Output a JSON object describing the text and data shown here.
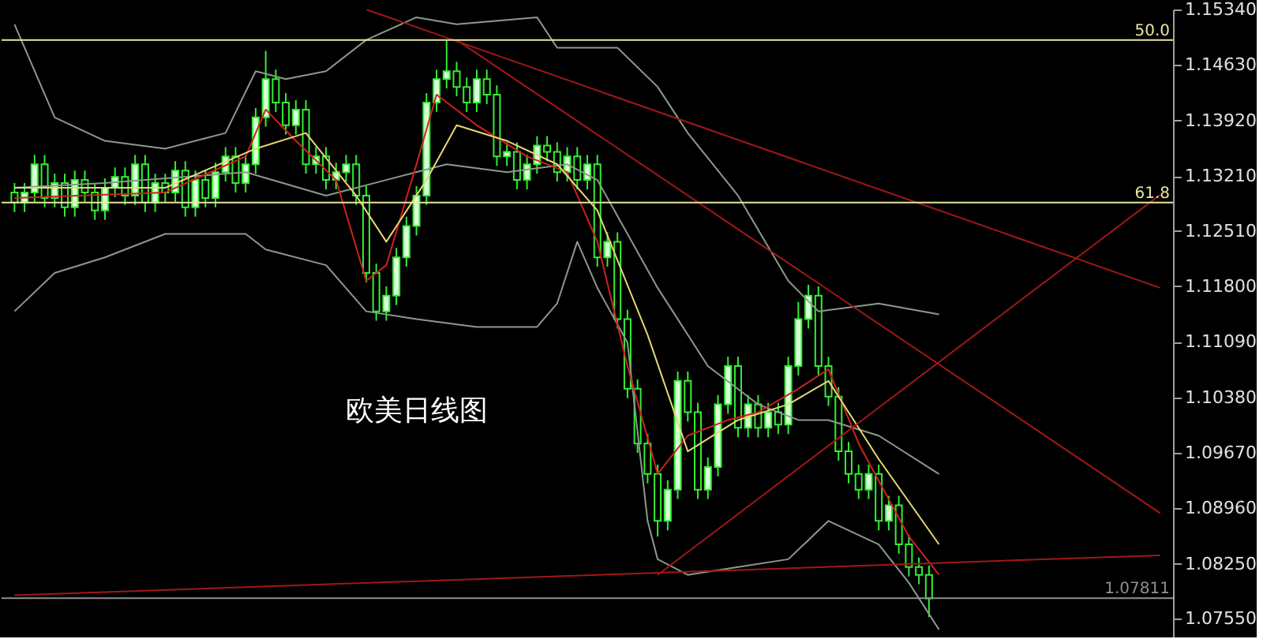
{
  "chart_data": {
    "type": "candlestick",
    "color": "#33ee33",
    "annotations": [
      "欧美日线图",
      {
        "text": "50.0",
        "y": 1.1495
      },
      {
        "text": "61.8",
        "y": 1.1287
      }
    ],
    "categories": [
      null,
      null,
      null,
      null,
      null,
      null,
      null,
      null,
      null,
      null,
      null,
      null,
      null,
      null,
      null,
      null,
      null,
      null,
      null,
      null,
      null,
      null,
      null,
      null,
      null,
      null,
      null,
      null,
      null,
      null,
      null,
      null,
      null,
      null,
      null,
      null,
      null,
      null,
      null,
      null,
      null,
      null,
      null,
      null,
      null,
      null,
      null,
      null,
      null,
      null,
      null,
      null,
      null,
      null,
      null,
      null,
      null,
      null,
      null,
      null,
      null,
      null,
      null,
      null,
      null,
      null,
      null,
      null,
      null,
      null,
      null,
      null,
      null,
      null,
      null,
      null,
      null,
      null,
      null,
      null,
      null,
      null,
      null,
      null,
      null,
      null,
      null,
      null,
      null,
      null,
      null,
      null,
      null,
      null,
      null,
      null,
      null,
      null,
      null,
      null,
      null,
      null,
      null,
      null,
      null,
      null,
      null,
      null,
      null,
      null,
      null,
      null,
      null,
      null,
      null
    ],
    "ohlc": [
      [
        1.13,
        1.1312,
        1.1275,
        1.1287
      ],
      [
        1.1287,
        1.1312,
        1.1275,
        1.13
      ],
      [
        1.13,
        1.1348,
        1.1288,
        1.1336
      ],
      [
        1.1336,
        1.1348,
        1.1281,
        1.1293
      ],
      [
        1.1293,
        1.1324,
        1.1281,
        1.1312
      ],
      [
        1.1312,
        1.1324,
        1.1269,
        1.1281
      ],
      [
        1.1281,
        1.1328,
        1.1269,
        1.1316
      ],
      [
        1.1316,
        1.1328,
        1.1288,
        1.13
      ],
      [
        1.13,
        1.1312,
        1.1265,
        1.1277
      ],
      [
        1.1277,
        1.1318,
        1.1265,
        1.1306
      ],
      [
        1.1306,
        1.1332,
        1.1294,
        1.132
      ],
      [
        1.132,
        1.1332,
        1.1284,
        1.1296
      ],
      [
        1.1296,
        1.1348,
        1.1284,
        1.1336
      ],
      [
        1.1336,
        1.1348,
        1.1275,
        1.1287
      ],
      [
        1.1287,
        1.1324,
        1.1275,
        1.1312
      ],
      [
        1.1312,
        1.1324,
        1.1288,
        1.13
      ],
      [
        1.13,
        1.134,
        1.1288,
        1.1328
      ],
      [
        1.1328,
        1.134,
        1.1269,
        1.1281
      ],
      [
        1.1281,
        1.1328,
        1.1269,
        1.1316
      ],
      [
        1.1316,
        1.1328,
        1.1281,
        1.1293
      ],
      [
        1.1293,
        1.1338,
        1.1281,
        1.1326
      ],
      [
        1.1326,
        1.1358,
        1.1314,
        1.1346
      ],
      [
        1.1346,
        1.1358,
        1.13,
        1.1312
      ],
      [
        1.1312,
        1.1348,
        1.13,
        1.1336
      ],
      [
        1.1336,
        1.1408,
        1.1324,
        1.1396
      ],
      [
        1.1396,
        1.1481,
        1.1384,
        1.1445
      ],
      [
        1.1445,
        1.1457,
        1.1403,
        1.1415
      ],
      [
        1.1415,
        1.1427,
        1.1374,
        1.1386
      ],
      [
        1.1386,
        1.1418,
        1.1374,
        1.1406
      ],
      [
        1.1406,
        1.1418,
        1.1324,
        1.1336
      ],
      [
        1.1336,
        1.1358,
        1.1324,
        1.1346
      ],
      [
        1.1346,
        1.1358,
        1.1304,
        1.1316
      ],
      [
        1.1316,
        1.1338,
        1.1304,
        1.1326
      ],
      [
        1.1326,
        1.1348,
        1.1314,
        1.1336
      ],
      [
        1.1336,
        1.1348,
        1.1284,
        1.1296
      ],
      [
        1.1296,
        1.1308,
        1.1185,
        1.1197
      ],
      [
        1.1197,
        1.1209,
        1.1136,
        1.1148
      ],
      [
        1.1148,
        1.118,
        1.1136,
        1.1168
      ],
      [
        1.1168,
        1.1229,
        1.1156,
        1.1217
      ],
      [
        1.1217,
        1.1269,
        1.1205,
        1.1257
      ],
      [
        1.1257,
        1.1308,
        1.1245,
        1.1296
      ],
      [
        1.1296,
        1.1427,
        1.1284,
        1.1415
      ],
      [
        1.1415,
        1.1457,
        1.1403,
        1.1445
      ],
      [
        1.1445,
        1.1495,
        1.1433,
        1.1455
      ],
      [
        1.1455,
        1.1467,
        1.1423,
        1.1435
      ],
      [
        1.1435,
        1.1447,
        1.1403,
        1.1415
      ],
      [
        1.1415,
        1.1457,
        1.1403,
        1.1445
      ],
      [
        1.1445,
        1.1457,
        1.1413,
        1.1425
      ],
      [
        1.1425,
        1.1437,
        1.1334,
        1.1346
      ],
      [
        1.1346,
        1.1364,
        1.1334,
        1.1352
      ],
      [
        1.1352,
        1.1364,
        1.1304,
        1.1316
      ],
      [
        1.1316,
        1.1348,
        1.1304,
        1.1336
      ],
      [
        1.1336,
        1.1372,
        1.1324,
        1.136
      ],
      [
        1.136,
        1.1372,
        1.134,
        1.1352
      ],
      [
        1.1352,
        1.1364,
        1.1314,
        1.1326
      ],
      [
        1.1326,
        1.1358,
        1.1314,
        1.1346
      ],
      [
        1.1346,
        1.1358,
        1.1304,
        1.1316
      ],
      [
        1.1316,
        1.1348,
        1.1304,
        1.1336
      ],
      [
        1.1336,
        1.1348,
        1.1205,
        1.1217
      ],
      [
        1.1217,
        1.1249,
        1.1205,
        1.1237
      ],
      [
        1.1237,
        1.1249,
        1.1126,
        1.1138
      ],
      [
        1.1138,
        1.115,
        1.1037,
        1.1049
      ],
      [
        1.1049,
        1.1061,
        1.0967,
        1.0979
      ],
      [
        1.0979,
        1.0991,
        1.0928,
        1.094
      ],
      [
        1.094,
        1.0952,
        1.086,
        1.088
      ],
      [
        1.088,
        1.0932,
        1.0868,
        1.092
      ],
      [
        1.092,
        1.1071,
        1.0908,
        1.1059
      ],
      [
        1.1059,
        1.1071,
        1.1007,
        1.1019
      ],
      [
        1.1019,
        1.1031,
        1.0908,
        1.092
      ],
      [
        1.092,
        1.0961,
        1.0908,
        1.0949
      ],
      [
        1.0949,
        1.1041,
        1.0937,
        1.1029
      ],
      [
        1.1029,
        1.109,
        1.1017,
        1.1078
      ],
      [
        1.1078,
        1.109,
        1.0987,
        1.0999
      ],
      [
        1.0999,
        1.1041,
        1.0987,
        1.1029
      ],
      [
        1.1029,
        1.1041,
        1.0987,
        1.0999
      ],
      [
        1.0999,
        1.1031,
        1.0987,
        1.1019
      ],
      [
        1.1019,
        1.1031,
        1.0991,
        1.1003
      ],
      [
        1.1003,
        1.109,
        1.0991,
        1.1078
      ],
      [
        1.1078,
        1.116,
        1.1066,
        1.1138
      ],
      [
        1.1138,
        1.1182,
        1.1126,
        1.1168
      ],
      [
        1.1168,
        1.118,
        1.1066,
        1.1078
      ],
      [
        1.1078,
        1.109,
        1.1027,
        1.1039
      ],
      [
        1.1039,
        1.1051,
        1.0957,
        1.0969
      ],
      [
        1.0969,
        1.0981,
        1.0928,
        1.094
      ],
      [
        1.094,
        1.0952,
        1.0908,
        1.092
      ],
      [
        1.092,
        1.0952,
        1.0908,
        1.094
      ],
      [
        1.094,
        1.0952,
        1.0868,
        1.088
      ],
      [
        1.088,
        1.0912,
        1.0868,
        1.09
      ],
      [
        1.09,
        1.0912,
        1.0838,
        1.085
      ],
      [
        1.085,
        1.0862,
        1.0809,
        1.0821
      ],
      [
        1.0821,
        1.0833,
        1.0799,
        1.0811
      ],
      [
        1.0811,
        1.0823,
        1.0757,
        1.0781
      ],
      null,
      null,
      null,
      null,
      null,
      null,
      null,
      null,
      null,
      null,
      null,
      null,
      null,
      null,
      null,
      null,
      null,
      null,
      null,
      null,
      null,
      null,
      null
    ],
    "series": [
      {
        "type": "line",
        "color": "#8a9a8a",
        "values": [
          1.1515,
          null,
          null,
          null,
          1.1396,
          null,
          null,
          null,
          null,
          1.1366,
          null,
          null,
          null,
          null,
          null,
          1.1356,
          null,
          null,
          null,
          null,
          null,
          1.1376,
          null,
          null,
          1.1455,
          null,
          null,
          1.1445,
          null,
          null,
          null,
          1.1455,
          null,
          null,
          null,
          1.1495,
          null,
          null,
          null,
          null,
          1.1524,
          null,
          null,
          null,
          1.1515,
          null,
          null,
          null,
          null,
          null,
          null,
          null,
          1.1524,
          null,
          1.1485,
          null,
          null,
          null,
          null,
          null,
          1.1485,
          null,
          null,
          null,
          1.1435,
          null,
          null,
          1.1376,
          null,
          null,
          null,
          null,
          1.1296,
          null,
          null,
          null,
          null,
          1.1187,
          null,
          null,
          1.1148,
          null,
          null,
          null,
          null,
          null,
          1.1158,
          null,
          null,
          null,
          null,
          null,
          1.1144,
          null,
          null,
          null,
          null,
          null,
          null,
          null,
          null,
          null,
          null,
          null,
          null,
          null,
          null,
          null,
          null,
          null,
          null,
          null,
          null,
          null,
          null
        ]
      },
      {
        "type": "line",
        "color": "#8a9a8a",
        "values": [
          1.1148,
          null,
          null,
          null,
          1.1197,
          null,
          null,
          null,
          null,
          1.1217,
          null,
          null,
          null,
          null,
          null,
          1.1247,
          null,
          null,
          null,
          null,
          null,
          null,
          null,
          1.1247,
          null,
          1.1227,
          null,
          null,
          null,
          null,
          null,
          1.1207,
          null,
          null,
          null,
          1.1148,
          null,
          null,
          null,
          null,
          1.1138,
          null,
          null,
          null,
          null,
          null,
          1.1128,
          null,
          null,
          null,
          null,
          null,
          1.1128,
          null,
          1.1158,
          null,
          1.1237,
          null,
          1.1178,
          null,
          null,
          1.1108,
          null,
          1.088,
          1.0831,
          null,
          null,
          1.0811,
          null,
          null,
          null,
          null,
          1.0821,
          null,
          null,
          null,
          null,
          1.0831,
          null,
          null,
          null,
          1.088,
          null,
          null,
          null,
          null,
          1.085,
          null,
          null,
          1.0801,
          null,
          null,
          1.0741,
          null,
          null,
          null,
          null,
          null,
          null,
          null,
          null,
          null,
          null,
          null,
          null,
          null,
          null,
          null,
          null,
          null,
          null,
          null,
          null,
          null,
          null
        ]
      },
      {
        "type": "line",
        "color": "#8a9a8a",
        "values": [
          1.1306,
          null,
          null,
          null,
          null,
          null,
          null,
          null,
          null,
          1.1312,
          null,
          null,
          null,
          null,
          null,
          null,
          null,
          null,
          null,
          null,
          null,
          null,
          null,
          1.1326,
          null,
          null,
          null,
          null,
          null,
          null,
          null,
          1.1296,
          null,
          null,
          null,
          null,
          null,
          1.1316,
          null,
          null,
          null,
          null,
          null,
          1.1336,
          null,
          null,
          null,
          null,
          null,
          1.1326,
          null,
          null,
          null,
          null,
          null,
          1.1336,
          null,
          null,
          1.1316,
          null,
          null,
          null,
          null,
          null,
          1.1178,
          null,
          null,
          null,
          null,
          1.1078,
          null,
          null,
          null,
          null,
          1.1029,
          null,
          null,
          null,
          1.1009,
          null,
          null,
          1.1009,
          null,
          null,
          null,
          null,
          1.0989,
          null,
          null,
          null,
          null,
          null,
          1.094,
          null,
          null,
          null,
          null,
          null,
          null,
          null,
          null,
          null,
          null,
          null,
          null,
          null,
          null,
          null,
          null,
          null,
          null,
          null,
          null,
          null,
          null
        ]
      },
      {
        "type": "line",
        "color": "#d02020",
        "values": [
          1.1293,
          null,
          null,
          null,
          null,
          null,
          null,
          null,
          null,
          null,
          null,
          null,
          null,
          null,
          null,
          1.13,
          null,
          null,
          null,
          null,
          null,
          null,
          null,
          1.1346,
          null,
          1.1406,
          null,
          null,
          1.1366,
          null,
          null,
          null,
          1.1316,
          null,
          null,
          1.1187,
          null,
          1.1207,
          null,
          null,
          1.1336,
          null,
          1.1425,
          null,
          null,
          null,
          1.1386,
          null,
          null,
          null,
          null,
          1.1346,
          null,
          null,
          null,
          1.1326,
          null,
          null,
          1.1237,
          null,
          null,
          1.1078,
          null,
          null,
          1.094,
          null,
          null,
          1.0989,
          null,
          null,
          null,
          1.1009,
          null,
          null,
          1.1019,
          null,
          null,
          null,
          1.1049,
          null,
          null,
          1.1074,
          null,
          null,
          1.0979,
          null,
          null,
          null,
          null,
          1.086,
          null,
          null,
          1.0811,
          null,
          null,
          null,
          null,
          null,
          null,
          null,
          null,
          null,
          null,
          null,
          null,
          null,
          null,
          null,
          null,
          null,
          null,
          null,
          null,
          null,
          null
        ]
      },
      {
        "type": "line",
        "color": "#e8d870",
        "values": [
          1.1306,
          null,
          null,
          null,
          null,
          null,
          null,
          null,
          null,
          null,
          null,
          null,
          null,
          null,
          null,
          1.1306,
          null,
          null,
          null,
          null,
          null,
          null,
          null,
          null,
          1.1356,
          null,
          null,
          null,
          null,
          1.1376,
          null,
          null,
          null,
          null,
          1.1296,
          null,
          null,
          1.1237,
          null,
          null,
          null,
          1.1316,
          null,
          null,
          1.1386,
          null,
          null,
          null,
          null,
          1.1366,
          null,
          null,
          null,
          null,
          1.1336,
          null,
          null,
          null,
          1.1277,
          null,
          null,
          null,
          null,
          1.1118,
          null,
          null,
          null,
          1.0969,
          null,
          null,
          null,
          null,
          1.1009,
          null,
          null,
          null,
          null,
          1.1029,
          null,
          null,
          null,
          1.1059,
          null,
          null,
          null,
          null,
          1.0959,
          null,
          null,
          null,
          null,
          null,
          1.085,
          null,
          null,
          null,
          null,
          null,
          null,
          null,
          null,
          null,
          null,
          null,
          null,
          null,
          null,
          null,
          null,
          null,
          null,
          null,
          null,
          null,
          null
        ]
      },
      {
        "type": "line",
        "color": "#a01818",
        "values": [
          null,
          null,
          null,
          null,
          null,
          null,
          null,
          null,
          null,
          null,
          null,
          null,
          null,
          null,
          null,
          null,
          null,
          null,
          null,
          null,
          null,
          null,
          null,
          null,
          null,
          null,
          null,
          null,
          null,
          null,
          null,
          null,
          null,
          null,
          null,
          1.1534,
          null,
          null,
          null,
          null,
          null,
          null,
          null,
          null,
          null,
          null,
          null,
          null,
          null,
          null,
          null,
          null,
          null,
          null,
          null,
          null,
          null,
          null,
          null,
          null,
          null,
          null,
          null,
          null,
          null,
          null,
          null,
          null,
          null,
          null,
          null,
          null,
          null,
          null,
          null,
          null,
          null,
          null,
          null,
          null,
          null,
          null,
          null,
          null,
          null,
          null,
          null,
          null,
          null,
          null,
          null,
          null,
          null,
          null,
          null,
          null,
          null,
          null,
          null,
          null,
          null,
          null,
          null,
          null,
          null,
          null,
          null,
          null,
          null,
          null,
          null,
          null,
          null,
          null,
          1.1178
        ]
      },
      {
        "type": "line",
        "color": "#a01818",
        "values": [
          null,
          null,
          null,
          null,
          null,
          null,
          null,
          null,
          null,
          null,
          null,
          null,
          null,
          null,
          null,
          null,
          null,
          null,
          null,
          null,
          null,
          null,
          null,
          null,
          null,
          null,
          null,
          null,
          null,
          null,
          null,
          null,
          null,
          null,
          null,
          null,
          null,
          null,
          null,
          null,
          null,
          null,
          null,
          null,
          1.1495,
          null,
          null,
          null,
          null,
          null,
          null,
          null,
          null,
          null,
          null,
          null,
          null,
          null,
          null,
          null,
          null,
          null,
          null,
          null,
          null,
          null,
          null,
          null,
          null,
          null,
          null,
          null,
          null,
          null,
          null,
          null,
          null,
          null,
          null,
          null,
          null,
          null,
          null,
          null,
          null,
          null,
          null,
          null,
          null,
          null,
          null,
          null,
          null,
          null,
          null,
          null,
          null,
          null,
          null,
          null,
          null,
          null,
          null,
          null,
          null,
          null,
          null,
          null,
          null,
          null,
          null,
          null,
          null,
          null,
          1.089
        ]
      },
      {
        "type": "line",
        "color": "#a01818",
        "values": [
          null,
          null,
          null,
          null,
          null,
          null,
          null,
          null,
          null,
          null,
          null,
          null,
          null,
          null,
          null,
          null,
          null,
          null,
          null,
          null,
          null,
          null,
          null,
          null,
          null,
          null,
          null,
          null,
          null,
          null,
          null,
          null,
          null,
          null,
          null,
          null,
          null,
          null,
          null,
          null,
          null,
          null,
          null,
          null,
          null,
          null,
          null,
          null,
          null,
          null,
          null,
          null,
          null,
          null,
          null,
          null,
          null,
          null,
          null,
          null,
          null,
          null,
          null,
          null,
          1.0811,
          null,
          null,
          null,
          null,
          null,
          null,
          null,
          null,
          null,
          null,
          null,
          null,
          null,
          null,
          null,
          null,
          null,
          null,
          null,
          null,
          null,
          null,
          null,
          null,
          null,
          null,
          null,
          null,
          null,
          null,
          null,
          null,
          null,
          null,
          null,
          null,
          null,
          null,
          null,
          null,
          null,
          null,
          null,
          null,
          null,
          null,
          null,
          null,
          null,
          1.1297
        ]
      },
      {
        "type": "line",
        "color": "#a01818",
        "values": [
          1.0785,
          null,
          null,
          null,
          null,
          null,
          null,
          null,
          null,
          null,
          null,
          null,
          null,
          null,
          null,
          null,
          null,
          null,
          null,
          null,
          null,
          null,
          null,
          null,
          null,
          null,
          null,
          null,
          null,
          null,
          null,
          null,
          null,
          null,
          null,
          null,
          null,
          null,
          null,
          null,
          null,
          null,
          null,
          null,
          null,
          null,
          null,
          null,
          null,
          null,
          null,
          null,
          null,
          null,
          null,
          null,
          null,
          null,
          null,
          null,
          null,
          null,
          null,
          null,
          null,
          null,
          null,
          null,
          null,
          null,
          null,
          null,
          null,
          null,
          null,
          null,
          null,
          null,
          null,
          null,
          null,
          null,
          null,
          null,
          null,
          null,
          null,
          null,
          null,
          null,
          null,
          null,
          null,
          null,
          null,
          null,
          null,
          null,
          null,
          null,
          null,
          null,
          null,
          null,
          null,
          null,
          null,
          null,
          null,
          null,
          null,
          null,
          null,
          null,
          1.0836
        ]
      }
    ],
    "ref_lines": [
      {
        "axis": "y",
        "value": 1.1495,
        "color": "#e6e6a0"
      },
      {
        "axis": "y",
        "value": 1.1287,
        "color": "#e6e6a0"
      },
      {
        "axis": "y",
        "value": 1.07811,
        "label": "1.07811",
        "color": "#909090"
      }
    ],
    "ylim": [
      1.0731,
      1.1534
    ],
    "yticks": [
      {
        "value": 1.1534,
        "label": "1.15340"
      },
      {
        "value": 1.1463,
        "label": "1.14630"
      },
      {
        "value": 1.1392,
        "label": "1.13920"
      },
      {
        "value": 1.1321,
        "label": "1.13210"
      },
      {
        "value": 1.1251,
        "label": "1.12510"
      },
      {
        "value": 1.118,
        "label": "1.11800"
      },
      {
        "value": 1.1109,
        "label": "1.11090"
      },
      {
        "value": 1.1038,
        "label": "1.10380"
      },
      {
        "value": 1.0967,
        "label": "1.09670"
      },
      {
        "value": 1.0896,
        "label": "1.08960"
      },
      {
        "value": 1.0825,
        "label": "1.08250"
      },
      {
        "value": 1.0755,
        "label": "1.07550"
      }
    ],
    "tick_labels": "y",
    "grid": false
  }
}
